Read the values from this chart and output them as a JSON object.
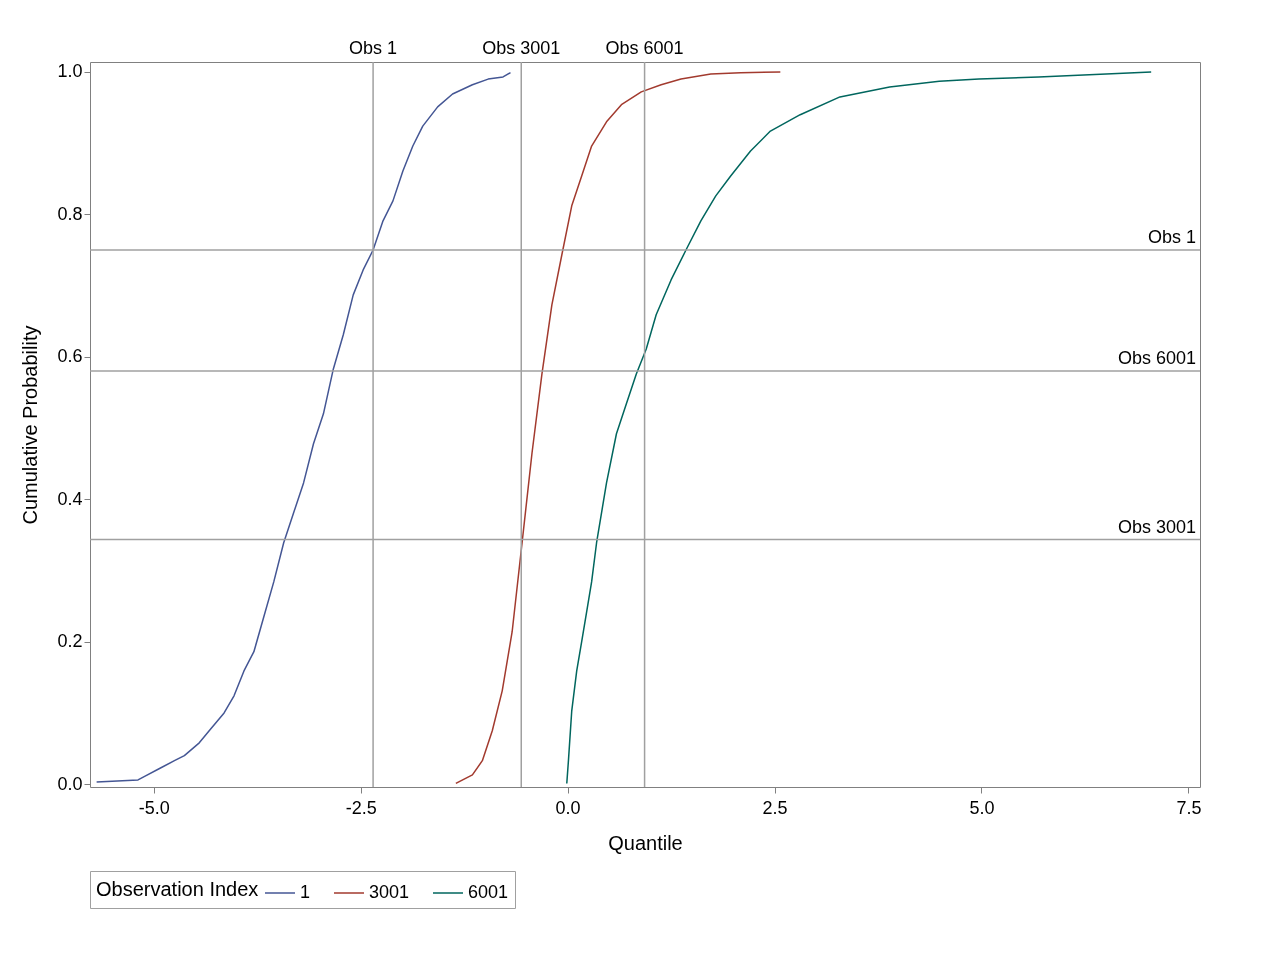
{
  "chart_data": {
    "type": "line",
    "xlabel": "Quantile",
    "ylabel": "Cumulative Probability",
    "legend_title": "Observation Index",
    "legend": "bottom",
    "grid": false,
    "marker": "none",
    "line_style": "solid",
    "xlim": [
      -5.77,
      7.64
    ],
    "ylim": [
      -0.004,
      1.014
    ],
    "xticks": [
      {
        "value": -5,
        "label": "-5.0"
      },
      {
        "value": -2.5,
        "label": "-2.5"
      },
      {
        "value": 0,
        "label": "0.0"
      },
      2.5,
      {
        "value": 5,
        "label": "5.0"
      },
      7.5
    ],
    "yticks": [
      {
        "value": 0,
        "label": "0.0"
      },
      0.2,
      0.4,
      0.6,
      0.8,
      {
        "value": 1,
        "label": "1.0"
      }
    ],
    "series": [
      {
        "name": "1",
        "color": "#445694",
        "x": [
          -5.69,
          -5.19,
          -5.11,
          -4.93,
          -4.75,
          -4.63,
          -4.45,
          -4.33,
          -4.15,
          -4.03,
          -3.91,
          -3.79,
          -3.67,
          -3.55,
          -3.43,
          -3.31,
          -3.19,
          -3.07,
          -2.95,
          -2.83,
          -2.71,
          -2.59,
          -2.47,
          -2.35,
          -2.23,
          -2.11,
          -1.99,
          -1.87,
          -1.75,
          -1.57,
          -1.39,
          -1.15,
          -0.96,
          -0.78,
          -0.69
        ],
        "values": [
          0.003,
          0.006,
          0.011,
          0.022,
          0.033,
          0.04,
          0.058,
          0.075,
          0.1,
          0.124,
          0.159,
          0.186,
          0.235,
          0.284,
          0.339,
          0.381,
          0.423,
          0.478,
          0.52,
          0.583,
          0.631,
          0.687,
          0.722,
          0.75,
          0.791,
          0.819,
          0.861,
          0.896,
          0.924,
          0.951,
          0.969,
          0.982,
          0.99,
          0.993,
          0.999
        ]
      },
      {
        "name": "3001",
        "color": "#a23a2e",
        "x": [
          -1.35,
          -1.15,
          -1.03,
          -0.91,
          -0.79,
          -0.67,
          -0.55,
          -0.43,
          -0.31,
          -0.19,
          -0.07,
          0.05,
          0.17,
          0.29,
          0.47,
          0.65,
          0.89,
          1.13,
          1.37,
          1.73,
          2.09,
          2.57
        ],
        "values": [
          0.001,
          0.013,
          0.033,
          0.075,
          0.131,
          0.214,
          0.339,
          0.465,
          0.576,
          0.673,
          0.743,
          0.812,
          0.854,
          0.896,
          0.93,
          0.954,
          0.972,
          0.982,
          0.99,
          0.997,
          0.999,
          1.0
        ]
      },
      {
        "name": "6001",
        "color": "#01665e",
        "x": [
          -0.01,
          0.01,
          0.05,
          0.11,
          0.17,
          0.23,
          0.29,
          0.35,
          0.47,
          0.59,
          0.71,
          0.83,
          0.95,
          1.07,
          1.25,
          1.43,
          1.61,
          1.79,
          1.97,
          2.21,
          2.45,
          2.81,
          3.29,
          3.89,
          4.49,
          4.97,
          5.69,
          7.05
        ],
        "values": [
          0.001,
          0.033,
          0.103,
          0.159,
          0.2,
          0.242,
          0.284,
          0.339,
          0.423,
          0.492,
          0.534,
          0.576,
          0.611,
          0.659,
          0.708,
          0.75,
          0.791,
          0.826,
          0.854,
          0.889,
          0.917,
          0.94,
          0.965,
          0.979,
          0.987,
          0.99,
          0.993,
          1.0
        ]
      }
    ],
    "ref_lines": [
      {
        "axis": "x",
        "value": -2.35,
        "label": "Obs 1",
        "color": "#a0a0a0"
      },
      {
        "axis": "x",
        "value": -0.56,
        "label": "Obs 3001",
        "color": "#a0a0a0"
      },
      {
        "axis": "x",
        "value": 0.93,
        "label": "Obs 6001",
        "color": "#a0a0a0"
      },
      {
        "axis": "y",
        "value": 0.75,
        "label": "Obs 1",
        "color": "#a0a0a0"
      },
      {
        "axis": "y",
        "value": 0.58,
        "label": "Obs 6001",
        "color": "#a0a0a0"
      },
      {
        "axis": "y",
        "value": 0.3435,
        "label": "Obs 3001",
        "color": "#a0a0a0"
      }
    ]
  }
}
